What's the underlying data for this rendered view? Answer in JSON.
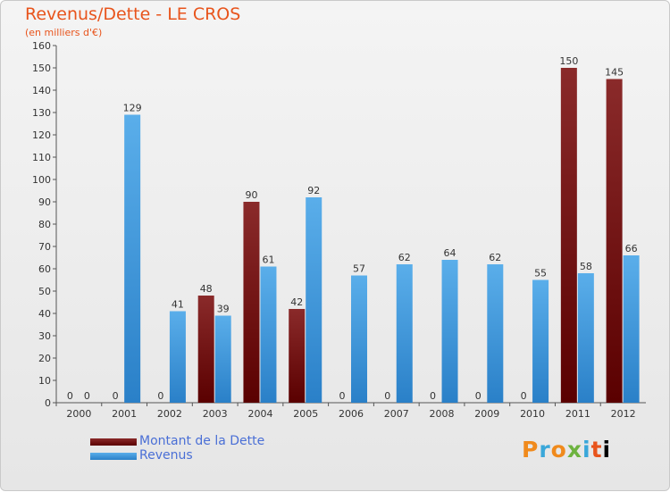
{
  "chart_data": {
    "type": "bar",
    "title": "Revenus/Dette - LE CROS",
    "subtitle": "(en milliers d'€)",
    "categories": [
      "2000",
      "2001",
      "2002",
      "2003",
      "2004",
      "2005",
      "2006",
      "2007",
      "2008",
      "2009",
      "2010",
      "2011",
      "2012"
    ],
    "series": [
      {
        "name": "Montant de la Dette",
        "color": "#6b0f0f",
        "values": [
          0,
          0,
          0,
          48,
          90,
          42,
          0,
          0,
          0,
          0,
          0,
          150,
          145
        ]
      },
      {
        "name": "Revenus",
        "color": "#3d9be0",
        "values": [
          0,
          129,
          41,
          39,
          61,
          92,
          57,
          62,
          64,
          62,
          55,
          58,
          66
        ]
      }
    ],
    "ylim": [
      0,
      160
    ],
    "yticks": [
      0,
      10,
      20,
      30,
      40,
      50,
      60,
      70,
      80,
      90,
      100,
      110,
      120,
      130,
      140,
      150,
      160
    ],
    "grid": false,
    "legend_position": "bottom-left"
  },
  "logo": {
    "letters": [
      "P",
      "r",
      "o",
      "x",
      "i",
      "t",
      "i"
    ]
  }
}
